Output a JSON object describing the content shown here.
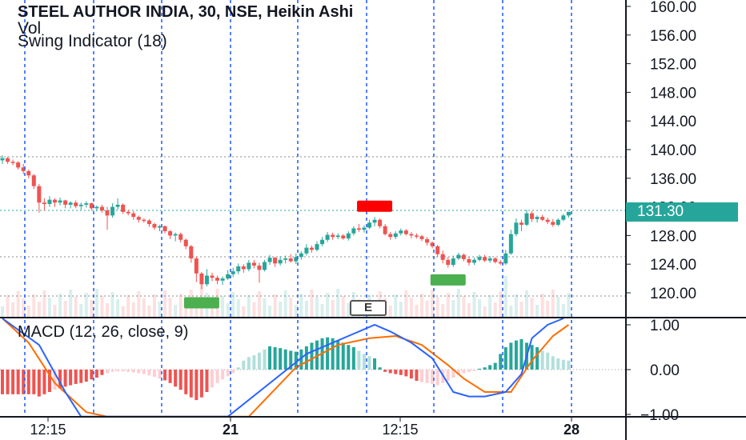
{
  "legend": {
    "title": "STEEL AUTHOR INDIA, 30, NSE, Heikin Ashi",
    "vol": "Vol",
    "swing": "Swing Indicator (18)",
    "macd": "MACD (12, 26, close, 9)"
  },
  "price_scale": [
    "160.00",
    "156.00",
    "152.00",
    "148.00",
    "144.00",
    "140.00",
    "136.00",
    "132.00",
    "128.00",
    "124.00",
    "120.00"
  ],
  "last_price": "131.30",
  "macd_scale": [
    "1.00",
    "0.00",
    "−1.00"
  ],
  "time_axis": [
    "12:15",
    "21",
    "12:15",
    "28"
  ],
  "event_marker": "E",
  "colors": {
    "up": "#26a69a",
    "down": "#ef5350",
    "swing_high": "#ff0000",
    "swing_low": "#4caf50",
    "macd_line": "#2962ff",
    "signal_line": "#ff6d00",
    "divider": "#2962ff"
  },
  "chart_data": {
    "type": "candlestick",
    "chart_style": "Heikin Ashi",
    "symbol": "STEEL AUTHOR INDIA",
    "exchange": "NSE",
    "interval": "30",
    "price_ylim": [
      117,
      161
    ],
    "macd_ylim": [
      -1.05,
      1.1
    ],
    "last_close": 131.3,
    "reference_levels": [
      139,
      131.3,
      125,
      119.5
    ],
    "candles": [
      [
        138.5,
        139.2,
        138.0,
        138.8
      ],
      [
        138.8,
        139.0,
        138.0,
        138.3
      ],
      [
        138.3,
        138.6,
        137.8,
        138.2
      ],
      [
        138.2,
        138.4,
        137.2,
        137.5
      ],
      [
        137.5,
        138.0,
        136.6,
        137.0
      ],
      [
        137.0,
        137.2,
        136.0,
        136.4
      ],
      [
        136.4,
        136.6,
        134.5,
        134.9
      ],
      [
        134.9,
        135.2,
        131.2,
        132.6
      ],
      [
        132.6,
        133.2,
        131.5,
        132.4
      ],
      [
        132.4,
        133.5,
        132.0,
        133.0
      ],
      [
        133.0,
        133.2,
        132.0,
        132.6
      ],
      [
        132.6,
        133.3,
        132.2,
        132.9
      ],
      [
        132.9,
        133.0,
        131.8,
        132.3
      ],
      [
        132.3,
        132.8,
        131.8,
        132.6
      ],
      [
        132.6,
        132.9,
        131.8,
        132.1
      ],
      [
        132.1,
        132.6,
        131.6,
        132.3
      ],
      [
        132.3,
        132.8,
        131.9,
        132.5
      ],
      [
        132.5,
        132.6,
        131.5,
        131.8
      ],
      [
        131.8,
        132.2,
        131.4,
        132.0
      ],
      [
        132.0,
        132.3,
        131.2,
        131.5
      ],
      [
        131.5,
        132.0,
        128.8,
        130.8
      ],
      [
        130.8,
        132.5,
        130.5,
        132.0
      ],
      [
        132.0,
        133.2,
        131.6,
        132.3
      ],
      [
        132.3,
        132.5,
        131.0,
        131.3
      ],
      [
        131.3,
        131.6,
        130.8,
        131.1
      ],
      [
        131.1,
        131.4,
        130.2,
        130.6
      ],
      [
        130.6,
        130.8,
        129.8,
        130.2
      ],
      [
        130.2,
        130.4,
        129.8,
        130.1
      ],
      [
        130.1,
        130.3,
        129.2,
        129.6
      ],
      [
        129.6,
        129.8,
        128.8,
        129.1
      ],
      [
        129.1,
        129.5,
        128.6,
        129.3
      ],
      [
        129.3,
        129.4,
        128.3,
        128.6
      ],
      [
        128.6,
        128.8,
        127.5,
        128.0
      ],
      [
        128.0,
        128.4,
        127.2,
        128.2
      ],
      [
        128.2,
        128.4,
        127.0,
        127.4
      ],
      [
        127.4,
        127.6,
        126.1,
        126.5
      ],
      [
        126.5,
        126.7,
        124.2,
        124.8
      ],
      [
        124.8,
        125.1,
        121.5,
        122.7
      ],
      [
        122.7,
        122.9,
        120.5,
        121.2
      ],
      [
        121.2,
        123.3,
        120.9,
        122.4
      ],
      [
        122.4,
        122.8,
        121.6,
        122.1
      ],
      [
        122.1,
        122.4,
        121.2,
        121.7
      ],
      [
        121.7,
        122.3,
        121.1,
        122.0
      ],
      [
        122.0,
        123.2,
        121.8,
        122.6
      ],
      [
        122.6,
        123.5,
        122.2,
        123.0
      ],
      [
        123.0,
        124.1,
        122.6,
        123.7
      ],
      [
        123.7,
        124.0,
        122.8,
        123.3
      ],
      [
        123.3,
        124.6,
        123.0,
        124.2
      ],
      [
        124.2,
        124.6,
        123.4,
        123.8
      ],
      [
        123.8,
        124.2,
        121.4,
        123.2
      ],
      [
        123.2,
        124.6,
        123.0,
        124.3
      ],
      [
        124.3,
        125.3,
        123.9,
        124.9
      ],
      [
        124.9,
        125.0,
        123.6,
        124.1
      ],
      [
        124.1,
        125.1,
        123.8,
        124.6
      ],
      [
        124.6,
        125.2,
        124.1,
        124.8
      ],
      [
        124.8,
        125.4,
        124.2,
        124.4
      ],
      [
        124.4,
        125.5,
        124.0,
        125.0
      ],
      [
        125.0,
        125.8,
        124.6,
        125.5
      ],
      [
        125.5,
        126.8,
        125.2,
        126.3
      ],
      [
        126.3,
        126.6,
        125.6,
        126.0
      ],
      [
        126.0,
        127.2,
        125.8,
        126.8
      ],
      [
        126.8,
        127.8,
        126.5,
        127.4
      ],
      [
        127.4,
        128.5,
        127.1,
        128.1
      ],
      [
        128.1,
        128.4,
        127.4,
        127.8
      ],
      [
        127.8,
        128.3,
        127.5,
        128.0
      ],
      [
        128.0,
        128.2,
        127.4,
        127.6
      ],
      [
        127.6,
        128.6,
        127.3,
        128.3
      ],
      [
        128.3,
        129.3,
        128.0,
        129.0
      ],
      [
        129.0,
        129.6,
        128.5,
        128.8
      ],
      [
        128.8,
        129.4,
        128.4,
        129.1
      ],
      [
        129.1,
        130.2,
        128.9,
        129.8
      ],
      [
        129.8,
        130.6,
        129.3,
        130.2
      ],
      [
        130.2,
        130.4,
        129.0,
        129.3
      ],
      [
        129.3,
        129.6,
        128.0,
        128.2
      ],
      [
        128.2,
        128.5,
        127.4,
        127.8
      ],
      [
        127.8,
        128.6,
        127.5,
        128.3
      ],
      [
        128.3,
        129.0,
        128.0,
        128.7
      ],
      [
        128.7,
        128.9,
        128.0,
        128.2
      ],
      [
        128.2,
        128.5,
        127.6,
        128.0
      ],
      [
        128.0,
        128.3,
        127.6,
        127.9
      ],
      [
        127.9,
        128.1,
        127.2,
        127.5
      ],
      [
        127.5,
        127.8,
        126.6,
        127.0
      ],
      [
        127.0,
        127.2,
        126.2,
        126.5
      ],
      [
        126.5,
        126.7,
        125.0,
        125.4
      ],
      [
        125.4,
        125.9,
        124.1,
        124.6
      ],
      [
        124.6,
        125.0,
        123.5,
        123.9
      ],
      [
        123.9,
        125.2,
        123.6,
        124.8
      ],
      [
        124.8,
        125.6,
        124.6,
        125.3
      ],
      [
        125.3,
        125.5,
        124.4,
        124.7
      ],
      [
        124.7,
        125.0,
        123.8,
        124.2
      ],
      [
        124.2,
        124.9,
        123.9,
        124.6
      ],
      [
        124.6,
        125.3,
        124.4,
        125.0
      ],
      [
        125.0,
        125.3,
        124.3,
        124.5
      ],
      [
        124.5,
        125.1,
        124.2,
        124.8
      ],
      [
        124.8,
        125.0,
        124.1,
        124.3
      ],
      [
        124.3,
        124.6,
        123.9,
        124.1
      ],
      [
        124.1,
        126.0,
        123.9,
        125.5
      ],
      [
        125.5,
        128.8,
        125.3,
        128.2
      ],
      [
        128.2,
        130.4,
        127.9,
        129.8
      ],
      [
        129.8,
        130.2,
        128.6,
        129.5
      ],
      [
        129.5,
        131.6,
        129.3,
        131.1
      ],
      [
        131.1,
        131.4,
        129.9,
        130.3
      ],
      [
        130.3,
        130.8,
        129.8,
        130.6
      ],
      [
        130.6,
        130.9,
        130.0,
        130.2
      ],
      [
        130.2,
        130.5,
        129.6,
        129.9
      ],
      [
        129.9,
        130.3,
        129.2,
        129.5
      ],
      [
        129.5,
        130.4,
        129.3,
        130.2
      ],
      [
        130.2,
        131.0,
        130.0,
        130.8
      ],
      [
        130.8,
        131.3,
        130.5,
        131.3
      ]
    ],
    "swing_markers": [
      {
        "type": "low",
        "index": 38,
        "price": 118.6
      },
      {
        "type": "high",
        "index": 71,
        "price": 132.1
      },
      {
        "type": "low",
        "index": 85,
        "price": 121.8
      }
    ],
    "macd_histogram": [
      -0.55,
      -0.55,
      -0.55,
      -0.55,
      -0.55,
      -0.55,
      -0.55,
      -0.6,
      -0.55,
      -0.5,
      -0.45,
      -0.42,
      -0.38,
      -0.35,
      -0.32,
      -0.3,
      -0.27,
      -0.22,
      -0.18,
      -0.12,
      -0.08,
      -0.05,
      -0.04,
      -0.04,
      -0.05,
      -0.06,
      -0.08,
      -0.1,
      -0.13,
      -0.16,
      -0.2,
      -0.24,
      -0.3,
      -0.38,
      -0.45,
      -0.55,
      -0.62,
      -0.68,
      -0.62,
      -0.5,
      -0.4,
      -0.3,
      -0.22,
      -0.15,
      -0.08,
      0.05,
      0.2,
      0.28,
      0.32,
      0.38,
      0.45,
      0.52,
      0.5,
      0.48,
      0.45,
      0.42,
      0.4,
      0.45,
      0.52,
      0.6,
      0.65,
      0.7,
      0.72,
      0.7,
      0.65,
      0.6,
      0.55,
      0.5,
      0.42,
      0.35,
      0.3,
      0.25,
      0.05,
      -0.05,
      -0.08,
      -0.1,
      -0.12,
      -0.15,
      -0.2,
      -0.25,
      -0.28,
      -0.3,
      -0.32,
      -0.35,
      -0.3,
      -0.25,
      -0.18,
      -0.12,
      -0.08,
      -0.05,
      -0.03,
      0.02,
      0.05,
      0.1,
      0.15,
      0.35,
      0.5,
      0.6,
      0.65,
      0.68,
      0.6,
      0.55,
      0.5,
      0.42,
      0.38,
      0.3,
      0.25,
      0.22,
      0.2
    ],
    "macd_line": [
      [
        0,
        1.2
      ],
      [
        7,
        0.55
      ],
      [
        12,
        -0.5
      ],
      [
        15,
        -1.05
      ],
      [
        43,
        -1.05
      ],
      [
        58,
        0.35
      ],
      [
        66,
        0.75
      ],
      [
        71,
        1.0
      ],
      [
        74,
        0.85
      ],
      [
        78,
        0.6
      ],
      [
        82,
        0.25
      ],
      [
        86,
        -0.5
      ],
      [
        89,
        -0.6
      ],
      [
        92,
        -0.6
      ],
      [
        96,
        -0.5
      ],
      [
        99,
        -0.1
      ],
      [
        101,
        0.7
      ],
      [
        104,
        1.0
      ],
      [
        107,
        1.2
      ]
    ],
    "signal_line": [
      [
        0,
        1.3
      ],
      [
        5,
        0.6
      ],
      [
        10,
        -0.3
      ],
      [
        16,
        -0.95
      ],
      [
        20,
        -1.05
      ],
      [
        47,
        -1.05
      ],
      [
        56,
        0.05
      ],
      [
        64,
        0.55
      ],
      [
        70,
        0.7
      ],
      [
        75,
        0.75
      ],
      [
        80,
        0.55
      ],
      [
        85,
        0.1
      ],
      [
        88,
        -0.2
      ],
      [
        92,
        -0.5
      ],
      [
        97,
        -0.5
      ],
      [
        101,
        0.2
      ],
      [
        105,
        0.75
      ],
      [
        108,
        1.0
      ]
    ]
  }
}
